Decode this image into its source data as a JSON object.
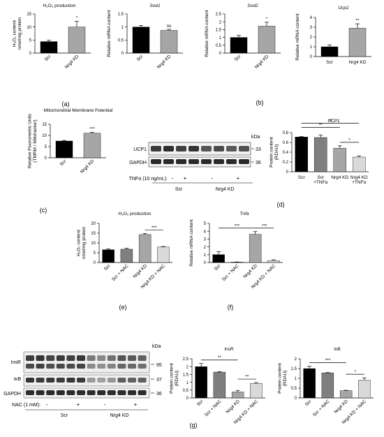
{
  "chart_data": [
    {
      "id": "a1",
      "type": "bar",
      "title": "H₂O₂ production",
      "ylabel": "H₂O₂ content\nnmol/mg protein",
      "categories": [
        "Scr",
        "Nrg4 KD"
      ],
      "values": [
        4.4,
        10.0
      ],
      "errors": [
        0.5,
        2.2
      ],
      "ylim": [
        0,
        15
      ],
      "yticks": [
        0,
        5,
        10,
        15
      ],
      "colors": [
        "#000000",
        "#a6a6a6"
      ],
      "sig": [
        "",
        "*"
      ],
      "rot": 45
    },
    {
      "id": "a2",
      "type": "bar",
      "title": "Sod1",
      "ylabel": "Relative mRNA content",
      "categories": [
        "Scr",
        "Nrg4 KD"
      ],
      "values": [
        1.0,
        0.87
      ],
      "errors": [
        0.06,
        0.04
      ],
      "ylim": [
        0,
        1.5
      ],
      "yticks": [
        0,
        0.5,
        1.0,
        1.5
      ],
      "colors": [
        "#000000",
        "#a6a6a6"
      ],
      "sig": [
        "",
        "ns"
      ],
      "rot": 45
    },
    {
      "id": "b1",
      "type": "bar",
      "title": "Sod2",
      "ylabel": "Relative mRNA content",
      "categories": [
        "Scr",
        "Nrg4 KD"
      ],
      "values": [
        1.0,
        1.72
      ],
      "errors": [
        0.13,
        0.25
      ],
      "ylim": [
        0,
        2.5
      ],
      "yticks": [
        0,
        0.5,
        1.0,
        1.5,
        2.0,
        2.5
      ],
      "colors": [
        "#000000",
        "#a6a6a6"
      ],
      "sig": [
        "",
        "*"
      ],
      "rot": 45
    },
    {
      "id": "b2",
      "type": "bar",
      "title": "Ucp1",
      "ylabel": "Relative mRNA content",
      "categories": [
        "Scr",
        "Nrg4 KD"
      ],
      "values": [
        1.0,
        2.9
      ],
      "errors": [
        0.2,
        0.45
      ],
      "ylim": [
        0,
        4
      ],
      "yticks": [
        0,
        1,
        2,
        3,
        4
      ],
      "colors": [
        "#000000",
        "#a6a6a6"
      ],
      "sig": [
        "",
        "**"
      ],
      "rot": 0
    },
    {
      "id": "c",
      "type": "bar",
      "title": "Mitochondrial Membrane Potential",
      "ylabel": "Relative Fluorometric Units\n(TMRM / Mitotracker)",
      "categories": [
        "Scr",
        "Nrg4 KD"
      ],
      "values": [
        7.5,
        11.0
      ],
      "errors": [
        0.25,
        0.35
      ],
      "ylim": [
        0,
        15
      ],
      "yticks": [
        0,
        5,
        10,
        15
      ],
      "colors": [
        "#000000",
        "#a6a6a6"
      ],
      "sig": [
        "",
        "***"
      ],
      "rot": 45
    },
    {
      "id": "d",
      "type": "bar",
      "title": "UCP1",
      "ylabel": "Protein content\n(RDAU)",
      "categories": [
        "Scr",
        "Scr\n+TNFα",
        "Nrg4 KD",
        "Nrg4 KD\n+TNFα"
      ],
      "values": [
        0.71,
        0.7,
        0.48,
        0.3
      ],
      "errors": [
        0.01,
        0.05,
        0.05,
        0.025
      ],
      "ylim": [
        0,
        0.8
      ],
      "yticks": [
        0,
        0.2,
        0.4,
        0.6,
        0.8
      ],
      "colors": [
        "#000000",
        "#7f7f7f",
        "#a6a6a6",
        "#d9d9d9"
      ],
      "sig": [],
      "rot": 0,
      "brackets": [
        {
          "from": 0,
          "to": 2,
          "label": "**",
          "level": 1
        },
        {
          "from": 0,
          "to": 3,
          "label": "**",
          "level": 2
        },
        {
          "from": 2,
          "to": 3,
          "label": "*",
          "level": 0
        }
      ]
    },
    {
      "id": "e",
      "type": "bar",
      "title": "H₂O₂ production",
      "ylabel": "H₂O₂ content\nnmol/mg protein",
      "categories": [
        "Scr",
        "Scr + NAC",
        "Nrg4 KD",
        "Nrg4 KD + NAC"
      ],
      "values": [
        6.5,
        6.8,
        14.3,
        7.9
      ],
      "errors": [
        0.4,
        0.5,
        0.5,
        0.3
      ],
      "ylim": [
        0,
        20
      ],
      "yticks": [
        0,
        5,
        10,
        15,
        20
      ],
      "colors": [
        "#000000",
        "#7f7f7f",
        "#a6a6a6",
        "#d9d9d9"
      ],
      "sig": [],
      "rot": 45,
      "brackets": [
        {
          "from": 2,
          "to": 3,
          "label": "***",
          "level": 0
        }
      ]
    },
    {
      "id": "f",
      "type": "bar",
      "title": "Tnfa",
      "ylabel": "Relative mRNA content",
      "categories": [
        "Scr",
        "Scr + NAC",
        "Nrg4 KD",
        "Nrg4 KD + NAC"
      ],
      "values": [
        1.0,
        0.05,
        3.6,
        0.25
      ],
      "errors": [
        0.4,
        0.02,
        0.35,
        0.1
      ],
      "ylim": [
        0,
        5
      ],
      "yticks": [
        0,
        1,
        2,
        3,
        4,
        5
      ],
      "colors": [
        "#000000",
        "#7f7f7f",
        "#a6a6a6",
        "#d9d9d9"
      ],
      "sig": [],
      "rot": 45,
      "brackets": [
        {
          "from": 0,
          "to": 2,
          "label": "***",
          "level": 0
        },
        {
          "from": 2,
          "to": 3,
          "label": "***",
          "level": 0
        }
      ]
    },
    {
      "id": "g1",
      "type": "bar",
      "title": "InsR",
      "ylabel": "Protein content\n(RDAU)",
      "categories": [
        "Scr",
        "Scr + NAC",
        "Nrg4 KD",
        "Nrg4 KD + NAC"
      ],
      "values": [
        2.0,
        1.65,
        0.38,
        0.93
      ],
      "errors": [
        0.2,
        0.03,
        0.1,
        0.05
      ],
      "ylim": [
        0,
        2.5
      ],
      "yticks": [
        0,
        0.5,
        1.0,
        1.5,
        2.0,
        2.5
      ],
      "colors": [
        "#000000",
        "#7f7f7f",
        "#a6a6a6",
        "#d9d9d9"
      ],
      "sig": [],
      "rot": 45,
      "brackets": [
        {
          "from": 0,
          "to": 2,
          "label": "**",
          "level": 0
        },
        {
          "from": 2,
          "to": 3,
          "label": "**",
          "level": 0
        }
      ]
    },
    {
      "id": "g2",
      "type": "bar",
      "title": "IκB",
      "ylabel": "Protein content\n(RDAU)",
      "categories": [
        "Scr",
        "Scr + NAC",
        "Nrg4 KD",
        "Nrg4 KD + NAC"
      ],
      "values": [
        1.5,
        1.28,
        0.37,
        0.91
      ],
      "errors": [
        0.12,
        0.02,
        0.02,
        0.12
      ],
      "ylim": [
        0,
        2.0
      ],
      "yticks": [
        0,
        0.5,
        1.0,
        1.5,
        2.0
      ],
      "colors": [
        "#000000",
        "#7f7f7f",
        "#a6a6a6",
        "#d9d9d9"
      ],
      "sig": [],
      "rot": 45,
      "brackets": [
        {
          "from": 0,
          "to": 2,
          "label": "***",
          "level": 0
        },
        {
          "from": 2,
          "to": 3,
          "label": "*",
          "level": 0
        }
      ]
    }
  ],
  "panel_labels": {
    "a": "(a)",
    "b": "(b)",
    "c": "(c)",
    "d": "(d)",
    "e": "(e)",
    "f": "(f)",
    "g": "(g)"
  },
  "blot_d": {
    "kda": "kDa",
    "rows": [
      {
        "name": "UCP1",
        "size": "33"
      },
      {
        "name": "GAPDH",
        "size": "36"
      }
    ],
    "treatment_label": "TNFα (10 ng/mL):",
    "treatment_signs": [
      "-",
      "+",
      "-",
      "+"
    ],
    "groups": [
      "Scr",
      "Nrg4 KD"
    ]
  },
  "blot_g": {
    "kda": "kDa",
    "rows": [
      {
        "name": "InsR",
        "size": "95"
      },
      {
        "name": "IκB",
        "size": "37"
      },
      {
        "name": "GAPDH",
        "size": "36"
      }
    ],
    "treatment_label": "NAC (1 mM):",
    "treatment_signs": [
      "-",
      "+",
      "-",
      "+"
    ],
    "groups": [
      "Scr",
      "Nrg4 KD"
    ]
  }
}
